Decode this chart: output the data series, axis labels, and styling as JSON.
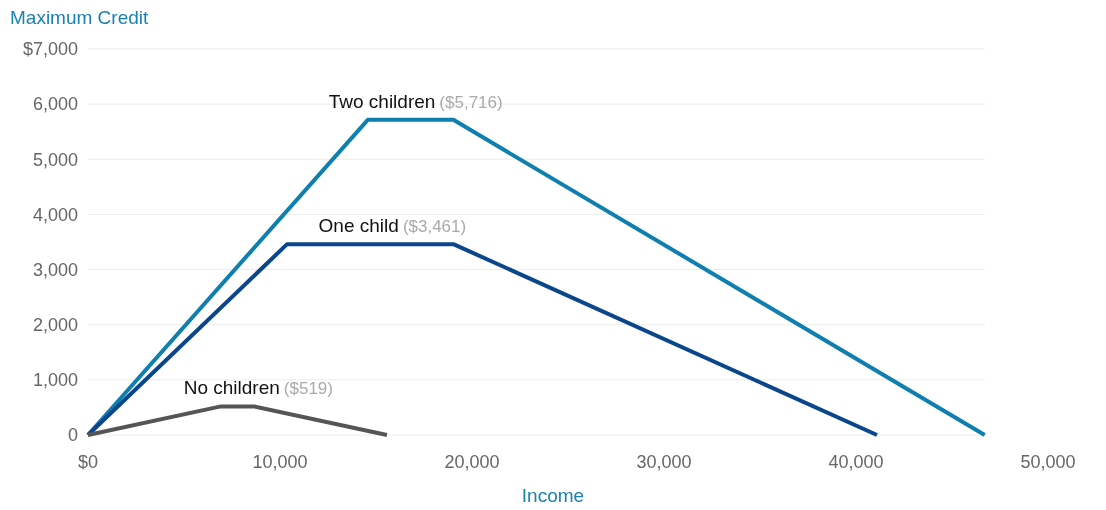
{
  "chart_data": {
    "type": "line",
    "ylabel": "Maximum Credit",
    "xlabel": "Income",
    "xlim": [
      0,
      50000
    ],
    "ylim": [
      0,
      7000
    ],
    "xticks": [
      {
        "value": 0,
        "label": "$0"
      },
      {
        "value": 10000,
        "label": "10,000"
      },
      {
        "value": 20000,
        "label": "20,000"
      },
      {
        "value": 30000,
        "label": "30,000"
      },
      {
        "value": 40000,
        "label": "40,000"
      },
      {
        "value": 50000,
        "label": "50,000"
      }
    ],
    "yticks": [
      0,
      {
        "value": 1000,
        "label": "1,000"
      },
      {
        "value": 2000,
        "label": "2,000"
      },
      {
        "value": 3000,
        "label": "3,000"
      },
      {
        "value": 4000,
        "label": "4,000"
      },
      {
        "value": 5000,
        "label": "5,000"
      },
      {
        "value": 6000,
        "label": "6,000"
      },
      {
        "value": 7000,
        "label": "$7,000"
      }
    ],
    "grid": "y",
    "marker": "none",
    "line_style": "solid",
    "series": [
      {
        "name": "Two children",
        "color": "#0e7fae",
        "x": [
          0,
          14570,
          19030,
          46703
        ],
        "values": [
          0,
          5716,
          5716,
          0
        ]
      },
      {
        "name": "One child",
        "color": "#0a468c",
        "x": [
          0,
          10370,
          19030,
          41094
        ],
        "values": [
          0,
          3461,
          3461,
          0
        ]
      },
      {
        "name": "No children",
        "color": "#555555",
        "x": [
          0,
          6920,
          8650,
          15570
        ],
        "values": [
          0,
          519,
          519,
          0
        ]
      }
    ],
    "annotations": [
      {
        "text": "($5,716)",
        "x": 18300,
        "y": 5716
      },
      {
        "text": "($3,461)",
        "x": 16400,
        "y": 3461
      },
      {
        "text": "($519)",
        "x": 10200,
        "y": 519
      }
    ]
  }
}
